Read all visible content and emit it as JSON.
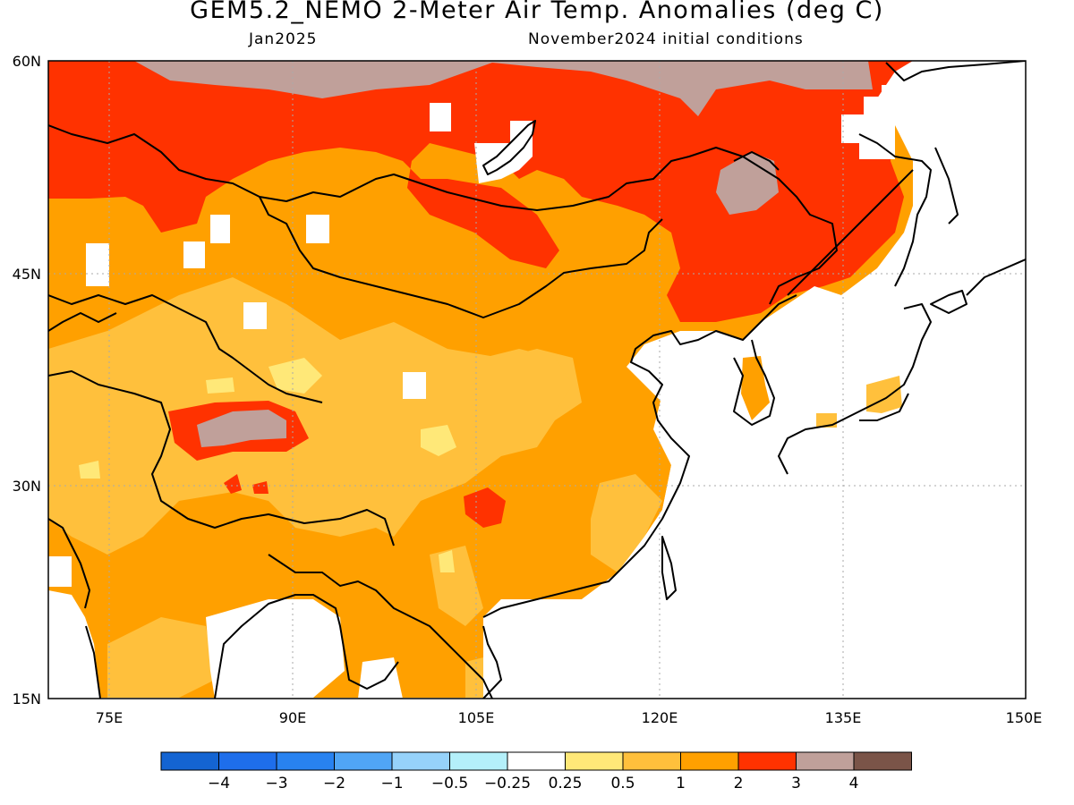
{
  "title": "GEM5.2_NEMO 2-Meter Air Temp. Anomalies (deg C)",
  "subtitle_left": "Jan2025",
  "subtitle_right": "November2024 initial conditions",
  "map": {
    "lon_range": [
      70,
      150
    ],
    "lat_range": [
      15,
      60
    ],
    "lat_ticks": [
      {
        "value": 60,
        "label": "60N"
      },
      {
        "value": 45,
        "label": "45N"
      },
      {
        "value": 30,
        "label": "30N"
      },
      {
        "value": 15,
        "label": "15N"
      }
    ],
    "lon_ticks": [
      {
        "value": 75,
        "label": "75E"
      },
      {
        "value": 90,
        "label": "90E"
      },
      {
        "value": 105,
        "label": "105E"
      },
      {
        "value": 120,
        "label": "120E"
      },
      {
        "value": 135,
        "label": "135E"
      },
      {
        "value": 150,
        "label": "150E"
      }
    ],
    "gridlines": "dotted"
  },
  "colorbar": {
    "colors": [
      "#1464d2",
      "#1e6eeb",
      "#2882f0",
      "#50a5f5",
      "#96d2fa",
      "#b4f0fa",
      "#ffffff",
      "#ffe878",
      "#ffc03c",
      "#ffa000",
      "#ff3200",
      "#c0a09a",
      "#7a5448"
    ],
    "labels": [
      "-4",
      "-3",
      "-2",
      "-1",
      "-0.5",
      "-0.25",
      "0.25",
      "0.5",
      "1",
      "2",
      "3",
      "4"
    ]
  }
}
